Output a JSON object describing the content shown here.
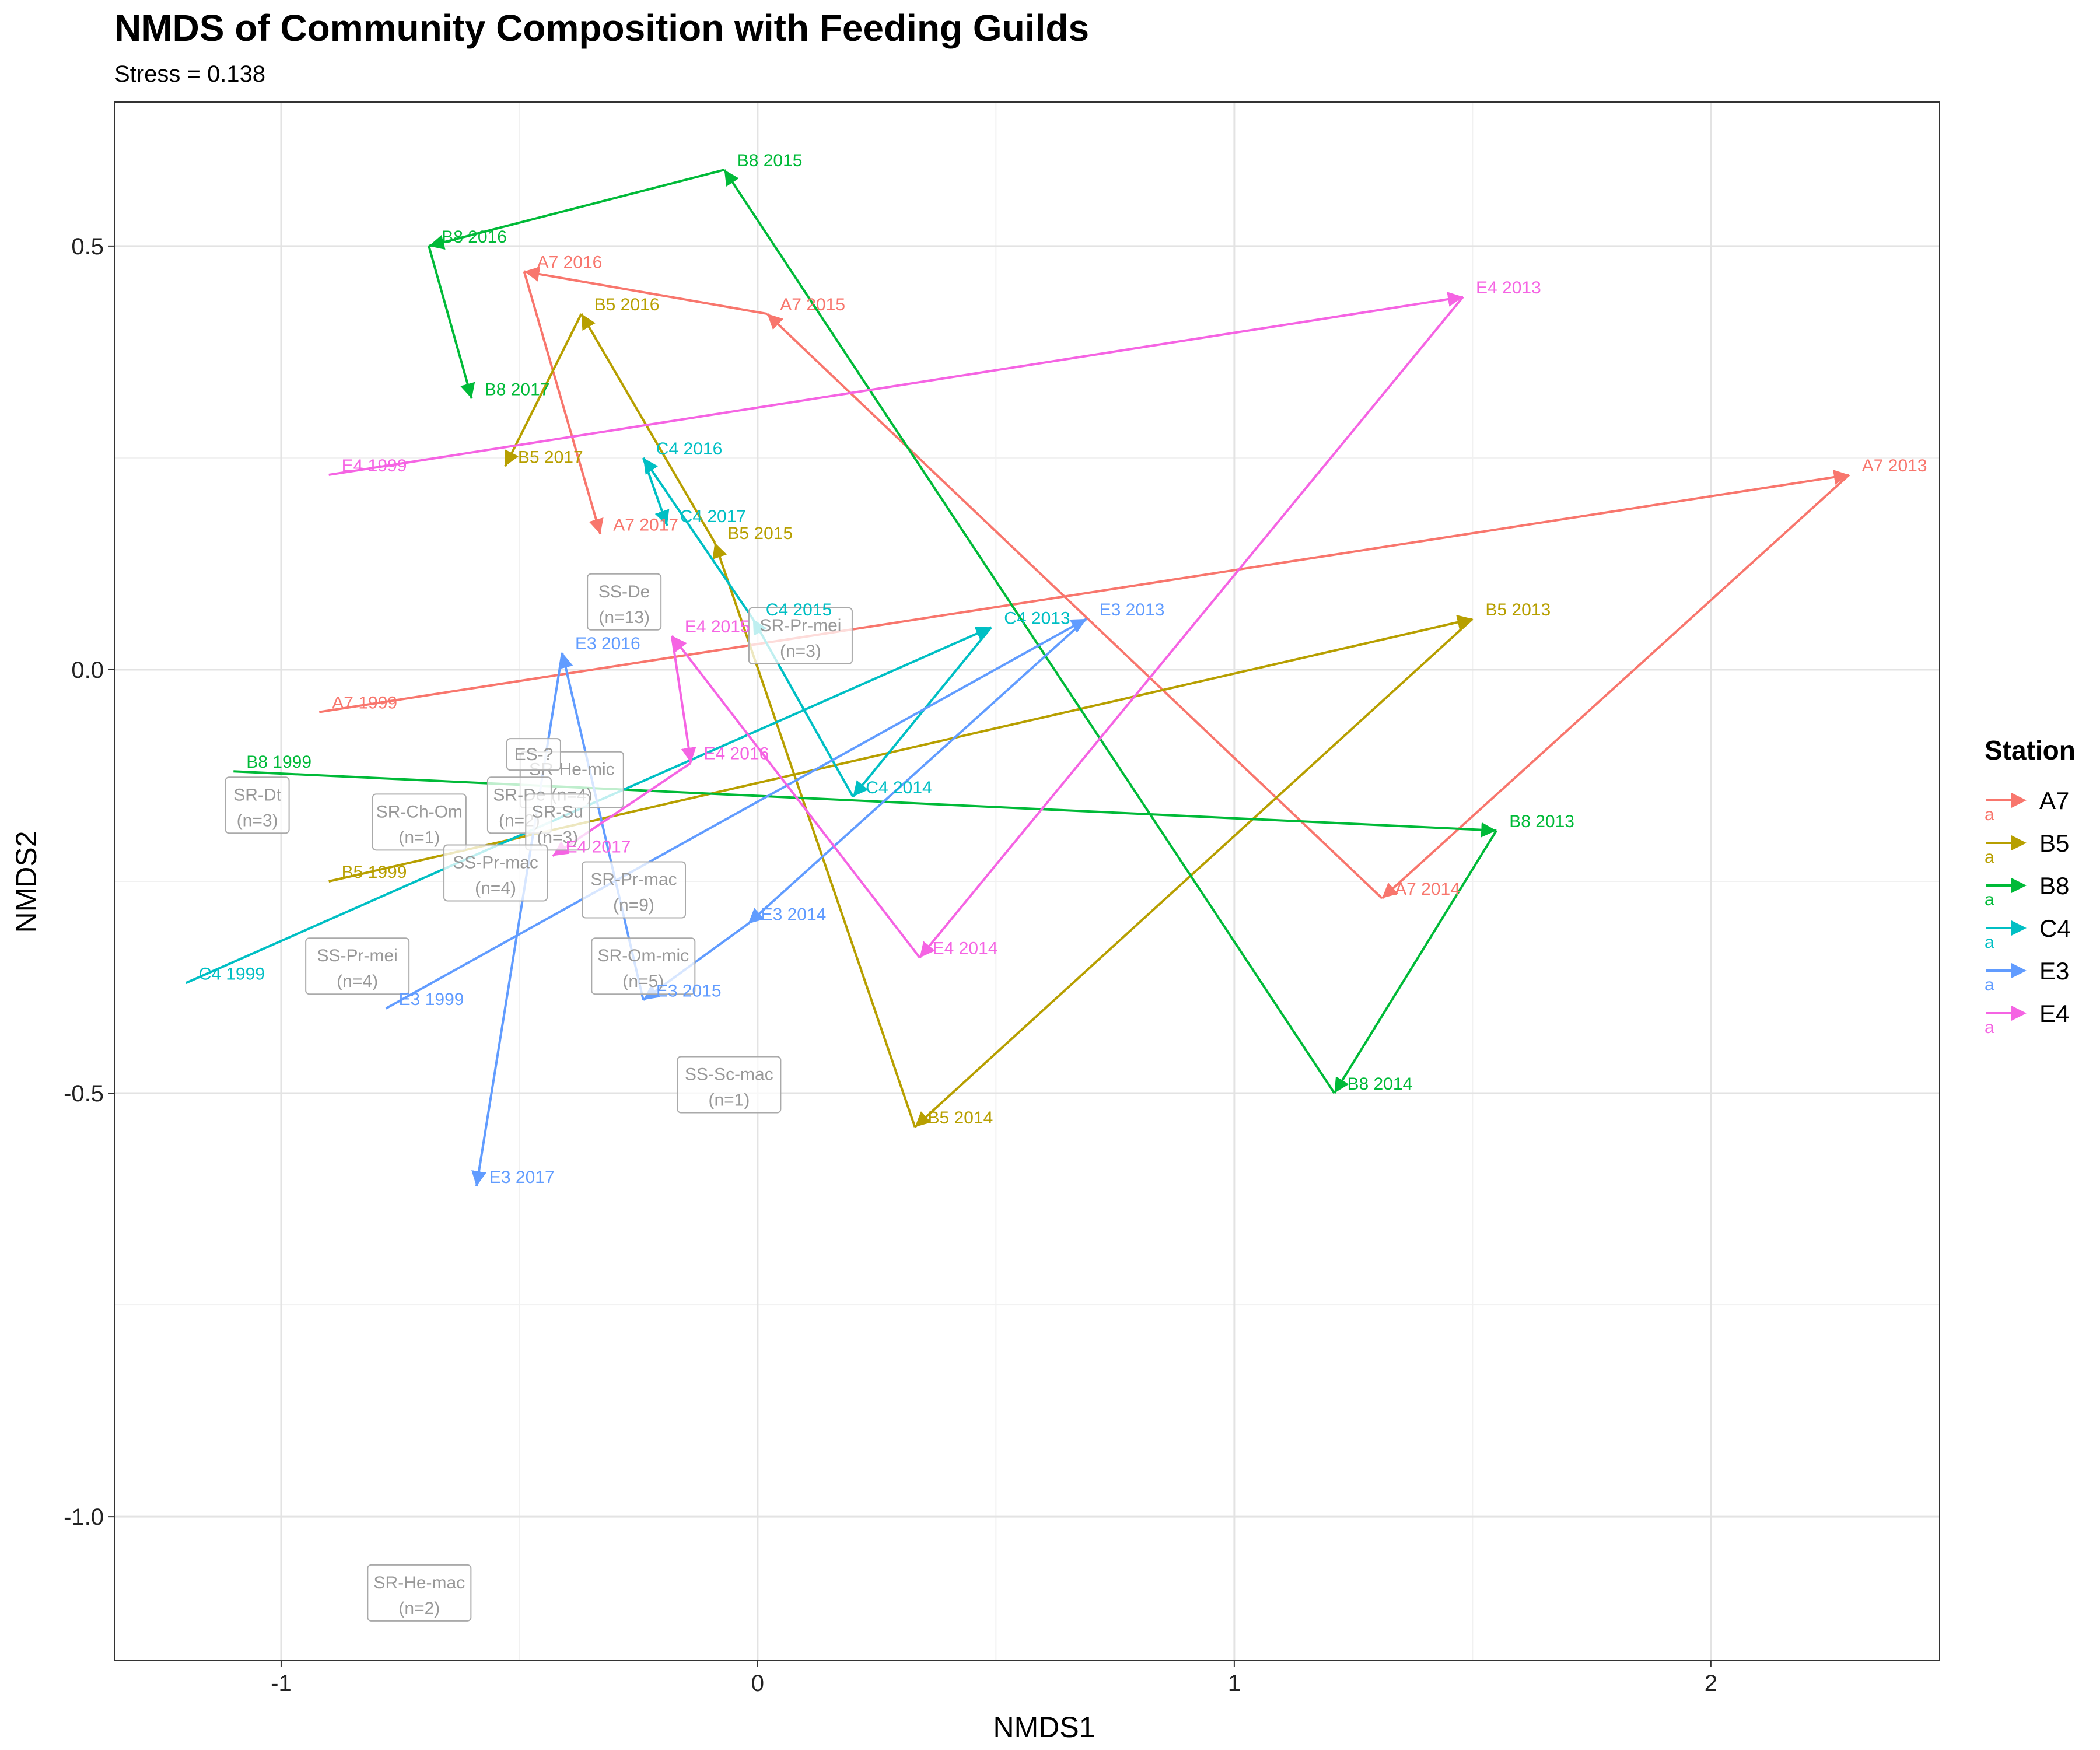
{
  "chart_data": {
    "type": "scatter",
    "title": "NMDS of Community Composition with Feeding Guilds",
    "subtitle": "Stress = 0.138",
    "xlabel": "NMDS1",
    "ylabel": "NMDS2",
    "xlim": [
      -1.35,
      2.48
    ],
    "ylim": [
      -1.17,
      0.67
    ],
    "x_ticks": [
      -1,
      0,
      1,
      2
    ],
    "x_tick_labels": [
      "-1",
      "0",
      "1",
      "2"
    ],
    "y_ticks": [
      -1.0,
      -0.5,
      0.0,
      0.5
    ],
    "y_tick_labels": [
      "-1.0",
      "-0.5",
      "0.0",
      "0.5"
    ],
    "grid": true,
    "legend": {
      "title": "Station",
      "placement": "right",
      "key_glyph": "a"
    },
    "colors": {
      "A7": "#F8766D",
      "B5": "#B79F00",
      "B8": "#00BA38",
      "C4": "#00BFC4",
      "E3": "#619CFF",
      "E4": "#F564E3"
    },
    "series": [
      {
        "name": "A7",
        "points": [
          {
            "label": "A7 1999",
            "x": -0.92,
            "y": -0.05
          },
          {
            "label": "A7 2013",
            "x": 2.29,
            "y": 0.23
          },
          {
            "label": "A7 2014",
            "x": 1.31,
            "y": -0.27
          },
          {
            "label": "A7 2015",
            "x": 0.02,
            "y": 0.42
          },
          {
            "label": "A7 2016",
            "x": -0.49,
            "y": 0.47
          },
          {
            "label": "A7 2017",
            "x": -0.33,
            "y": 0.16
          }
        ]
      },
      {
        "name": "B5",
        "points": [
          {
            "label": "B5 1999",
            "x": -0.9,
            "y": -0.25
          },
          {
            "label": "B5 2013",
            "x": 1.5,
            "y": 0.06
          },
          {
            "label": "B5 2014",
            "x": 0.33,
            "y": -0.54
          },
          {
            "label": "B5 2015",
            "x": -0.09,
            "y": 0.15
          },
          {
            "label": "B5 2016",
            "x": -0.37,
            "y": 0.42
          },
          {
            "label": "B5 2017",
            "x": -0.53,
            "y": 0.24
          }
        ]
      },
      {
        "name": "B8",
        "points": [
          {
            "label": "B8 1999",
            "x": -1.1,
            "y": -0.12
          },
          {
            "label": "B8 2013",
            "x": 1.55,
            "y": -0.19
          },
          {
            "label": "B8 2014",
            "x": 1.21,
            "y": -0.5
          },
          {
            "label": "B8 2015",
            "x": -0.07,
            "y": 0.59
          },
          {
            "label": "B8 2016",
            "x": -0.69,
            "y": 0.5
          },
          {
            "label": "B8 2017",
            "x": -0.6,
            "y": 0.32
          }
        ]
      },
      {
        "name": "C4",
        "points": [
          {
            "label": "C4 1999",
            "x": -1.2,
            "y": -0.37
          },
          {
            "label": "C4 2013",
            "x": 0.49,
            "y": 0.05
          },
          {
            "label": "C4 2014",
            "x": 0.2,
            "y": -0.15
          },
          {
            "label": "C4 2015",
            "x": -0.01,
            "y": 0.06
          },
          {
            "label": "C4 2016",
            "x": -0.24,
            "y": 0.25
          },
          {
            "label": "C4 2017",
            "x": -0.19,
            "y": 0.17
          }
        ]
      },
      {
        "name": "E3",
        "points": [
          {
            "label": "E3 1999",
            "x": -0.78,
            "y": -0.4
          },
          {
            "label": "E3 2013",
            "x": 0.69,
            "y": 0.06
          },
          {
            "label": "E3 2014",
            "x": -0.02,
            "y": -0.3
          },
          {
            "label": "E3 2015",
            "x": -0.24,
            "y": -0.39
          },
          {
            "label": "E3 2016",
            "x": -0.41,
            "y": 0.02
          },
          {
            "label": "E3 2017",
            "x": -0.59,
            "y": -0.61
          }
        ]
      },
      {
        "name": "E4",
        "points": [
          {
            "label": "E4 1999",
            "x": -0.9,
            "y": 0.23
          },
          {
            "label": "E4 2013",
            "x": 1.48,
            "y": 0.44
          },
          {
            "label": "E4 2014",
            "x": 0.34,
            "y": -0.34
          },
          {
            "label": "E4 2015",
            "x": -0.18,
            "y": 0.04
          },
          {
            "label": "E4 2016",
            "x": -0.14,
            "y": -0.11
          },
          {
            "label": "E4 2017",
            "x": -0.43,
            "y": -0.22
          }
        ]
      }
    ],
    "guild_labels": [
      {
        "name": "SS-De",
        "count": "(n=13)",
        "x": -0.28,
        "y": 0.08
      },
      {
        "name": "SR-Pr-mei",
        "count": "(n=3)",
        "x": 0.09,
        "y": 0.04
      },
      {
        "name": "SR-Dt",
        "count": "(n=3)",
        "x": -1.05,
        "y": -0.16
      },
      {
        "name": "SR-Ch-Om",
        "count": "(n=1)",
        "x": -0.71,
        "y": -0.18
      },
      {
        "name": "SR-He-mic",
        "count": "(n=4)",
        "x": -0.39,
        "y": -0.13
      },
      {
        "name": "SR-De",
        "count": "(n=2)",
        "x": -0.5,
        "y": -0.16
      },
      {
        "name": "ES-?",
        "count": "",
        "x": -0.47,
        "y": -0.1
      },
      {
        "name": "SR-Su",
        "count": "(n=3)",
        "x": -0.42,
        "y": -0.18
      },
      {
        "name": "SS-Pr-mac",
        "count": "(n=4)",
        "x": -0.55,
        "y": -0.24
      },
      {
        "name": "SR-Pr-mac",
        "count": "(n=9)",
        "x": -0.26,
        "y": -0.26
      },
      {
        "name": "SS-Pr-mei",
        "count": "(n=4)",
        "x": -0.84,
        "y": -0.35
      },
      {
        "name": "SR-Om-mic",
        "count": "(n=5)",
        "x": -0.24,
        "y": -0.35
      },
      {
        "name": "SS-Sc-mac",
        "count": "(n=1)",
        "x": -0.06,
        "y": -0.49
      },
      {
        "name": "SR-He-mac",
        "count": "(n=2)",
        "x": -0.71,
        "y": -1.09
      }
    ]
  }
}
